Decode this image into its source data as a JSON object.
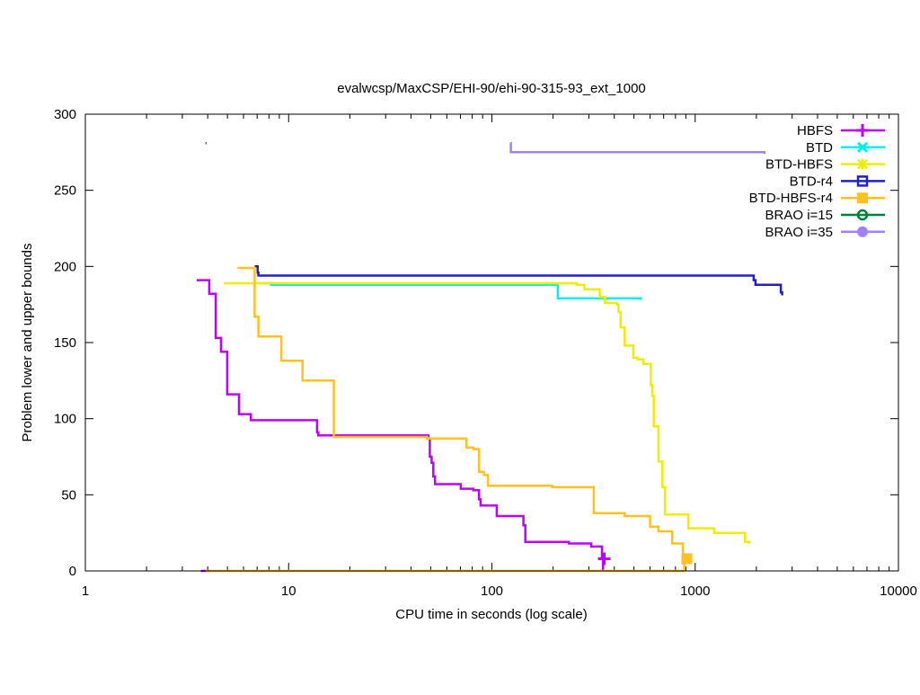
{
  "chart_data": {
    "type": "line",
    "title": "evalwcsp/MaxCSP/EHI-90/ehi-90-315-93_ext_1000",
    "xlabel": "CPU time in seconds (log scale)",
    "ylabel": "Problem lower and upper bounds",
    "xscale": "log",
    "xlim": [
      1,
      10000
    ],
    "ylim": [
      0,
      300
    ],
    "xticks": [
      1,
      10,
      100,
      1000,
      10000
    ],
    "xtick_labels": [
      "1",
      "10",
      "100",
      "1000",
      "10000"
    ],
    "yticks": [
      0,
      50,
      100,
      150,
      200,
      250,
      300
    ],
    "ytick_labels": [
      "0",
      "50",
      "100",
      "150",
      "200",
      "250",
      "300"
    ],
    "grid": false,
    "legend_position": "top-right",
    "series": [
      {
        "name": "HBFS",
        "color": "#c000ff",
        "marker": "plus",
        "marker_point": [
          357,
          8
        ],
        "points": [
          [
            3.53,
            191
          ],
          [
            4.07,
            182
          ],
          [
            4.38,
            153
          ],
          [
            4.65,
            144
          ],
          [
            4.99,
            116
          ],
          [
            5.7,
            103
          ],
          [
            6.52,
            99
          ],
          [
            13.8,
            91
          ],
          [
            14.0,
            89
          ],
          [
            48.7,
            87
          ],
          [
            49.5,
            75
          ],
          [
            50.5,
            71
          ],
          [
            51.5,
            62
          ],
          [
            52.5,
            57
          ],
          [
            70.3,
            54
          ],
          [
            81,
            53
          ],
          [
            86.5,
            47
          ],
          [
            88,
            43
          ],
          [
            105.7,
            36
          ],
          [
            143,
            30
          ],
          [
            146,
            19
          ],
          [
            239,
            18
          ],
          [
            308,
            16
          ],
          [
            348,
            8
          ],
          [
            352,
            0
          ]
        ],
        "lower": [
          [
            3.7,
            0
          ],
          [
            4.1,
            0
          ]
        ]
      },
      {
        "name": "BTD",
        "color": "#00eeee",
        "marker": "cross",
        "points": [
          [
            7.4,
            189
          ],
          [
            8.2,
            188
          ],
          [
            211,
            179
          ],
          [
            540,
            178
          ]
        ]
      },
      {
        "name": "BTD-HBFS",
        "color": "#eeee00",
        "marker": "star",
        "points": [
          [
            4.8,
            189
          ],
          [
            261,
            188
          ],
          [
            285,
            185
          ],
          [
            339,
            180
          ],
          [
            360,
            176
          ],
          [
            412,
            175
          ],
          [
            420,
            170
          ],
          [
            430,
            160
          ],
          [
            450,
            148
          ],
          [
            496,
            140
          ],
          [
            520,
            139
          ],
          [
            555,
            136
          ],
          [
            605,
            122
          ],
          [
            615,
            115
          ],
          [
            625,
            95
          ],
          [
            660,
            72
          ],
          [
            690,
            55
          ],
          [
            710,
            37
          ],
          [
            925,
            28
          ],
          [
            1240,
            25
          ],
          [
            1760,
            19
          ],
          [
            1840,
            18
          ]
        ]
      },
      {
        "name": "BTD-r4",
        "color": "#2020c0",
        "marker": "box",
        "points": [
          [
            6.8,
            200
          ],
          [
            7.04,
            196
          ],
          [
            7.1,
            194
          ],
          [
            1940,
            191
          ],
          [
            1980,
            188
          ],
          [
            2640,
            183
          ],
          [
            2680,
            181
          ]
        ]
      },
      {
        "name": "BTD-HBFS-r4",
        "color": "#ffc020",
        "marker": "filled-box",
        "marker_point": [
          910,
          8
        ],
        "points": [
          [
            5.6,
            199
          ],
          [
            6.8,
            167
          ],
          [
            7.1,
            154
          ],
          [
            9.2,
            138
          ],
          [
            11.7,
            125
          ],
          [
            16.7,
            88
          ],
          [
            48,
            87
          ],
          [
            75,
            81
          ],
          [
            81,
            80
          ],
          [
            86.5,
            65
          ],
          [
            91.5,
            63
          ],
          [
            95.6,
            56
          ],
          [
            198,
            55
          ],
          [
            317,
            38
          ],
          [
            450,
            36
          ],
          [
            600,
            29
          ],
          [
            660,
            26
          ],
          [
            770,
            18
          ],
          [
            870,
            5
          ],
          [
            885,
            0
          ]
        ],
        "lower": [
          [
            3.9,
            0
          ],
          [
            885,
            0
          ]
        ]
      },
      {
        "name": "BRAO i=15",
        "color": "#008040",
        "marker": "circle",
        "points": [
          [
            3.9,
            281
          ],
          [
            3.95,
            281
          ]
        ]
      },
      {
        "name": "BRAO i=35",
        "color": "#a080ff",
        "marker": "filled-circle",
        "points": [
          [
            123,
            281
          ],
          [
            124,
            275
          ],
          [
            2180,
            275
          ],
          [
            2190,
            274
          ]
        ]
      }
    ]
  }
}
